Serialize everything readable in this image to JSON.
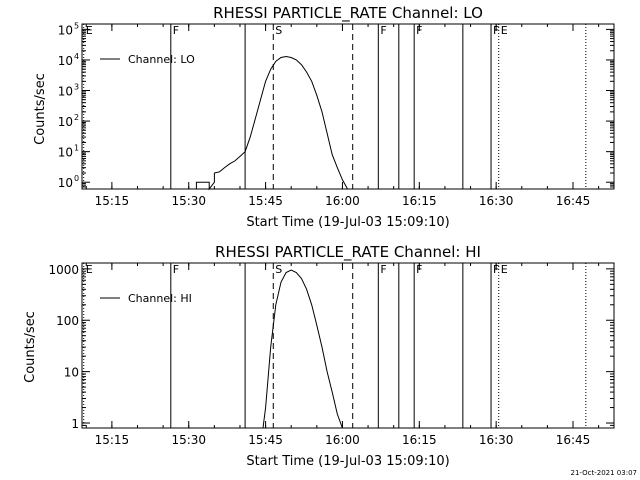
{
  "footer_stamp": "21-Oct-2021 03:07",
  "chart_data": [
    {
      "type": "line",
      "title": "RHESSI PARTICLE_RATE Channel: LO",
      "xlabel": "Start Time (19-Jul-03 15:09:10)",
      "ylabel": "Counts/sec",
      "x_ticks": [
        "15:15",
        "15:30",
        "15:45",
        "16:00",
        "16:15",
        "16:30",
        "16:45"
      ],
      "x_range": [
        "15:09:10",
        "16:53:00"
      ],
      "y_scale": "log",
      "y_range": [
        0.6,
        150000
      ],
      "y_ticks": [
        {
          "value": 1,
          "label": "10",
          "exp": "0"
        },
        {
          "value": 10,
          "label": "10",
          "exp": "1"
        },
        {
          "value": 100,
          "label": "10",
          "exp": "2"
        },
        {
          "value": 1000,
          "label": "10",
          "exp": "3"
        },
        {
          "value": 10000,
          "label": "10",
          "exp": "4"
        },
        {
          "value": 100000,
          "label": "10",
          "exp": "5"
        }
      ],
      "legend": {
        "label": "Channel: LO",
        "position": "top-left"
      },
      "markers": [
        {
          "time": "15:09:30",
          "label": "E",
          "style": "dotted"
        },
        {
          "time": "15:26:30",
          "label": "F",
          "style": "solid"
        },
        {
          "time": "15:41:00",
          "label": "",
          "style": "solid"
        },
        {
          "time": "15:46:30",
          "label": "S",
          "style": "dashed"
        },
        {
          "time": "16:02:00",
          "label": "",
          "style": "dashed"
        },
        {
          "time": "16:07:00",
          "label": "F",
          "style": "solid"
        },
        {
          "time": "16:11:00",
          "label": "",
          "style": "solid"
        },
        {
          "time": "16:14:00",
          "label": "F",
          "style": "solid"
        },
        {
          "time": "16:23:30",
          "label": "",
          "style": "solid"
        },
        {
          "time": "16:29:00",
          "label": "F",
          "style": "solid"
        },
        {
          "time": "16:30:30",
          "label": "E",
          "style": "dotted"
        },
        {
          "time": "16:47:30",
          "label": "",
          "style": "dotted"
        }
      ],
      "series": [
        {
          "name": "Channel: LO",
          "x": [
            "15:31:30",
            "15:31:30",
            "15:34:00",
            "15:34:00",
            "15:35:00",
            "15:35:00",
            "15:36:00",
            "15:37:00",
            "15:38:00",
            "15:39:00",
            "15:40:00",
            "15:41:00",
            "15:42:00",
            "15:43:00",
            "15:44:00",
            "15:45:00",
            "15:46:00",
            "15:47:00",
            "15:48:00",
            "15:49:00",
            "15:50:00",
            "15:51:00",
            "15:52:00",
            "15:53:00",
            "15:54:00",
            "15:55:00",
            "15:56:00",
            "15:57:00",
            "15:58:00",
            "15:59:00",
            "16:00:00",
            "16:01:00"
          ],
          "y": [
            0.6,
            1,
            1,
            0.6,
            1,
            2,
            2.2,
            3,
            4,
            5,
            7,
            10,
            30,
            120,
            500,
            2000,
            5000,
            9000,
            12000,
            13000,
            12000,
            10000,
            7000,
            4000,
            2000,
            700,
            200,
            40,
            8,
            3,
            1.2,
            0.6
          ]
        }
      ]
    },
    {
      "type": "line",
      "title": "RHESSI PARTICLE_RATE Channel: HI",
      "xlabel": "Start Time (19-Jul-03 15:09:10)",
      "ylabel": "Counts/sec",
      "x_ticks": [
        "15:15",
        "15:30",
        "15:45",
        "16:00",
        "16:15",
        "16:30",
        "16:45"
      ],
      "x_range": [
        "15:09:10",
        "16:53:00"
      ],
      "y_scale": "log",
      "y_range": [
        0.8,
        1300
      ],
      "y_ticks": [
        {
          "value": 1,
          "label": "1"
        },
        {
          "value": 10,
          "label": "10"
        },
        {
          "value": 100,
          "label": "100"
        },
        {
          "value": 1000,
          "label": "1000"
        }
      ],
      "legend": {
        "label": "Channel: HI",
        "position": "top-left"
      },
      "markers": [
        {
          "time": "15:09:30",
          "label": "E",
          "style": "dotted"
        },
        {
          "time": "15:26:30",
          "label": "F",
          "style": "solid"
        },
        {
          "time": "15:41:00",
          "label": "",
          "style": "solid"
        },
        {
          "time": "15:46:30",
          "label": "S",
          "style": "dashed"
        },
        {
          "time": "16:02:00",
          "label": "",
          "style": "dashed"
        },
        {
          "time": "16:07:00",
          "label": "F",
          "style": "solid"
        },
        {
          "time": "16:11:00",
          "label": "",
          "style": "solid"
        },
        {
          "time": "16:14:00",
          "label": "F",
          "style": "solid"
        },
        {
          "time": "16:23:30",
          "label": "",
          "style": "solid"
        },
        {
          "time": "16:29:00",
          "label": "F",
          "style": "solid"
        },
        {
          "time": "16:30:30",
          "label": "E",
          "style": "dotted"
        },
        {
          "time": "16:47:30",
          "label": "",
          "style": "dotted"
        }
      ],
      "series": [
        {
          "name": "Channel: HI",
          "x": [
            "15:44:30",
            "15:45:00",
            "15:46:00",
            "15:47:00",
            "15:48:00",
            "15:49:00",
            "15:50:00",
            "15:51:00",
            "15:52:00",
            "15:53:00",
            "15:54:00",
            "15:55:00",
            "15:56:00",
            "15:57:00",
            "15:58:00",
            "15:59:00",
            "16:00:00"
          ],
          "y": [
            0.8,
            2,
            30,
            200,
            550,
            850,
            950,
            850,
            650,
            400,
            200,
            80,
            30,
            10,
            4,
            1.5,
            0.8
          ]
        }
      ]
    }
  ]
}
